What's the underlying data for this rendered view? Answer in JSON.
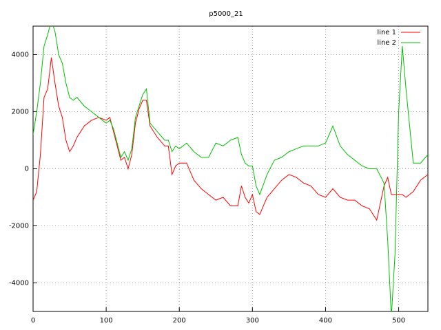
{
  "chart_data": {
    "type": "line",
    "title": "p5000_21",
    "x": [
      0,
      5,
      10,
      15,
      20,
      25,
      30,
      35,
      40,
      45,
      50,
      55,
      60,
      70,
      80,
      90,
      100,
      105,
      110,
      115,
      120,
      125,
      130,
      135,
      140,
      145,
      150,
      155,
      160,
      170,
      180,
      185,
      190,
      195,
      200,
      210,
      220,
      230,
      240,
      250,
      260,
      270,
      280,
      285,
      290,
      295,
      300,
      305,
      310,
      320,
      330,
      340,
      350,
      360,
      370,
      380,
      390,
      400,
      410,
      420,
      430,
      440,
      450,
      460,
      470,
      480,
      485,
      490,
      495,
      500,
      505,
      510,
      520,
      530,
      540
    ],
    "series": [
      {
        "name": "line 1",
        "color": "#ff0000",
        "values": [
          -1100,
          -800,
          500,
          2500,
          2800,
          3900,
          3000,
          2200,
          1800,
          1000,
          600,
          800,
          1100,
          1500,
          1700,
          1800,
          1700,
          1800,
          1300,
          800,
          300,
          400,
          0,
          500,
          1600,
          2100,
          2400,
          2400,
          1500,
          1100,
          800,
          800,
          -200,
          100,
          200,
          200,
          -400,
          -700,
          -900,
          -1100,
          -1000,
          -1300,
          -1300,
          -600,
          -1000,
          -1200,
          -900,
          -1500,
          -1600,
          -1000,
          -700,
          -400,
          -200,
          -300,
          -500,
          -600,
          -900,
          -1000,
          -700,
          -1000,
          -1100,
          -1100,
          -1300,
          -1400,
          -1800,
          -600,
          -300,
          -900,
          -900,
          -900,
          -900,
          -1000,
          -800,
          -400,
          -200
        ]
      },
      {
        "name": "line 2",
        "color": "#00c000",
        "values": [
          1200,
          2000,
          3000,
          4300,
          4700,
          5200,
          4800,
          4000,
          3700,
          3000,
          2500,
          2400,
          2500,
          2200,
          2000,
          1800,
          1600,
          1700,
          1400,
          900,
          400,
          600,
          300,
          700,
          1800,
          2200,
          2600,
          2800,
          1600,
          1300,
          1000,
          1000,
          600,
          800,
          700,
          900,
          600,
          400,
          400,
          900,
          800,
          1000,
          1100,
          500,
          200,
          100,
          100,
          -600,
          -900,
          -200,
          300,
          400,
          600,
          700,
          800,
          800,
          800,
          900,
          1500,
          800,
          500,
          300,
          100,
          0,
          0,
          -500,
          -2500,
          -5200,
          -3000,
          2000,
          4300,
          2800,
          200,
          200,
          500
        ]
      }
    ],
    "xlim": [
      0,
      540
    ],
    "xticks": [
      0,
      100,
      200,
      300,
      400,
      500
    ],
    "ylim": [
      -5000,
      5000
    ],
    "yticks": [
      -4000,
      -2000,
      0,
      2000,
      4000
    ],
    "grid": true,
    "legend": "top right"
  }
}
